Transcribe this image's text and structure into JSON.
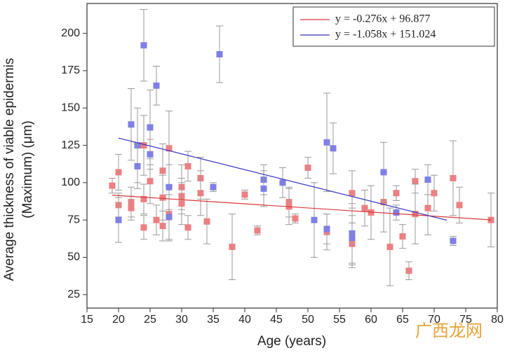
{
  "chart_data": {
    "type": "scatter",
    "x_label": "Age (years)",
    "y_label": [
      "Average thickness of viable epidermis",
      "(Maximum) (μm)"
    ],
    "xlim": [
      15,
      80
    ],
    "xticks": [
      15,
      20,
      25,
      30,
      35,
      40,
      45,
      50,
      55,
      60,
      65,
      70,
      75,
      80
    ],
    "ylim": [
      16,
      220
    ],
    "yticks": [
      25,
      50,
      75,
      100,
      125,
      150,
      175,
      200
    ],
    "series": [
      {
        "color": "#ec7f82",
        "x": [
          19,
          20,
          20,
          22,
          22,
          24,
          24,
          24,
          25,
          26,
          27,
          27,
          27,
          28,
          28,
          30,
          30,
          30,
          31,
          31,
          33,
          33,
          34,
          38,
          40,
          42,
          47,
          47,
          48,
          50,
          53,
          57,
          57,
          59,
          60,
          62,
          63,
          64,
          65,
          66,
          67,
          67,
          69,
          70,
          73,
          74,
          79
        ],
        "values": [
          98,
          107,
          85,
          87,
          83,
          125,
          89,
          70,
          101,
          75,
          108,
          90,
          71,
          123,
          79,
          97,
          91,
          86,
          111,
          70,
          103,
          93,
          74,
          57,
          92,
          68,
          87,
          84,
          76,
          110,
          67,
          93,
          59,
          83,
          80,
          87,
          57,
          93,
          64,
          41,
          101,
          79,
          83,
          93,
          103,
          85,
          75
        ],
        "errors": [
          5,
          12,
          8,
          10,
          8,
          20,
          10,
          8,
          15,
          10,
          18,
          15,
          10,
          25,
          18,
          15,
          12,
          14,
          10,
          8,
          14,
          15,
          15,
          22,
          3,
          3,
          10,
          12,
          3,
          7,
          12,
          15,
          14,
          12,
          18,
          20,
          26,
          5,
          8,
          6,
          8,
          20,
          18,
          12,
          25,
          12,
          18
        ]
      },
      {
        "color": "#7f7fe6",
        "x": [
          20,
          22,
          23,
          23,
          24,
          25,
          25,
          26,
          28,
          28,
          35,
          36,
          43,
          43,
          46,
          51,
          53,
          53,
          54,
          57,
          57,
          62,
          64,
          69,
          73
        ],
        "values": [
          75,
          139,
          125,
          111,
          192,
          137,
          119,
          165,
          97,
          77,
          97,
          186,
          102,
          96,
          100,
          75,
          127,
          69,
          123,
          66,
          63,
          107,
          80,
          102,
          61
        ],
        "errors": [
          15,
          24,
          25,
          15,
          24,
          25,
          10,
          13,
          15,
          15,
          3,
          19,
          10,
          12,
          10,
          25,
          33,
          10,
          17,
          20,
          20,
          20,
          5,
          10,
          3
        ]
      }
    ],
    "fits": [
      {
        "name": "y = -0.276x + 96.877",
        "color": "#d9383a",
        "slope": -0.276,
        "intercept": 96.877,
        "x": [
          19,
          79
        ]
      },
      {
        "name": "y = -1.058x + 151.024",
        "color": "#3535c0",
        "slope": -1.058,
        "intercept": 151.024,
        "x": [
          20,
          72
        ]
      }
    ],
    "watermark": "广西龙网"
  }
}
